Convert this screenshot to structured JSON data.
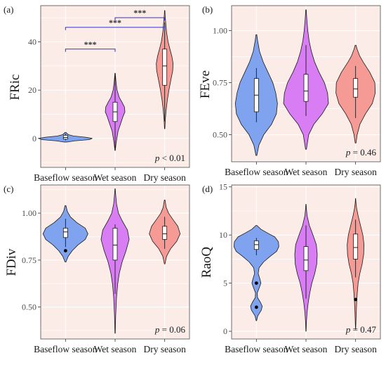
{
  "colors": {
    "baseflow": "#7fa3ee",
    "wet": "#d97df5",
    "dry": "#f69a95",
    "panel_bg": "#fbece7",
    "grid": "#ffffff",
    "bracket": "#3333cc"
  },
  "chart_data": [
    {
      "type": "violin",
      "panel": "(a)",
      "ylabel": "FRic",
      "categories": [
        "Baseflow season",
        "Wet season",
        "Dry season"
      ],
      "yticks": [
        0,
        20,
        40
      ],
      "ytick_labels": [
        "0",
        "20",
        "40"
      ],
      "ylim": [
        -12,
        55
      ],
      "p_italic": "p",
      "p_text": " < 0.01",
      "significance": [
        {
          "from": 0,
          "to": 1,
          "label": "***",
          "y": 37
        },
        {
          "from": 0,
          "to": 2,
          "label": "***",
          "y": 46
        },
        {
          "from": 1,
          "to": 2,
          "label": "***",
          "y": 50
        }
      ],
      "violins": [
        {
          "min": -1.5,
          "max": 2.5,
          "q1": -0.3,
          "median": 0.4,
          "q3": 1.3,
          "wlo": -0.8,
          "whi": 2.0,
          "outliers": [],
          "density": [
            [
              -1.5,
              0.05
            ],
            [
              -1,
              0.35
            ],
            [
              -0.5,
              0.9
            ],
            [
              0,
              1
            ],
            [
              0.5,
              0.75
            ],
            [
              1,
              0.3
            ],
            [
              1.5,
              0.12
            ],
            [
              2,
              0.06
            ],
            [
              2.5,
              0.02
            ]
          ]
        },
        {
          "min": -5,
          "max": 27,
          "q1": 7,
          "median": 11,
          "q3": 15,
          "wlo": -4,
          "whi": 26,
          "outliers": [],
          "density": [
            [
              -5,
              0.02
            ],
            [
              -2,
              0.1
            ],
            [
              0,
              0.18
            ],
            [
              3,
              0.3
            ],
            [
              6,
              0.55
            ],
            [
              9,
              0.8
            ],
            [
              11,
              1
            ],
            [
              13,
              0.95
            ],
            [
              15,
              0.7
            ],
            [
              17,
              0.42
            ],
            [
              20,
              0.2
            ],
            [
              23,
              0.1
            ],
            [
              25,
              0.06
            ],
            [
              27,
              0.02
            ]
          ]
        },
        {
          "min": 4,
          "max": 53,
          "q1": 22,
          "median": 30,
          "q3": 37,
          "wlo": 7,
          "whi": 48,
          "outliers": [],
          "density": [
            [
              4,
              0.02
            ],
            [
              8,
              0.08
            ],
            [
              12,
              0.18
            ],
            [
              16,
              0.32
            ],
            [
              20,
              0.5
            ],
            [
              24,
              0.72
            ],
            [
              28,
              0.95
            ],
            [
              31,
              1
            ],
            [
              34,
              0.85
            ],
            [
              37,
              0.62
            ],
            [
              40,
              0.4
            ],
            [
              44,
              0.22
            ],
            [
              48,
              0.12
            ],
            [
              51,
              0.05
            ],
            [
              53,
              0.02
            ]
          ]
        }
      ]
    },
    {
      "type": "violin",
      "panel": "(b)",
      "ylabel": "FEve",
      "categories": [
        "Baseflow season",
        "Wet season",
        "Dry season"
      ],
      "yticks": [
        0.5,
        0.75,
        1.0
      ],
      "ytick_labels": [
        "0.50",
        "0.75",
        "1.00"
      ],
      "ylim": [
        0.37,
        1.12
      ],
      "p_italic": "p",
      "p_text": " = 0.46",
      "significance": [],
      "violins": [
        {
          "min": 0.4,
          "max": 0.98,
          "q1": 0.61,
          "median": 0.69,
          "q3": 0.77,
          "wlo": 0.56,
          "whi": 0.82,
          "outliers": [],
          "density": [
            [
              0.4,
              0.02
            ],
            [
              0.45,
              0.12
            ],
            [
              0.5,
              0.35
            ],
            [
              0.55,
              0.72
            ],
            [
              0.6,
              0.95
            ],
            [
              0.65,
              1
            ],
            [
              0.7,
              0.92
            ],
            [
              0.75,
              0.78
            ],
            [
              0.8,
              0.55
            ],
            [
              0.85,
              0.32
            ],
            [
              0.9,
              0.15
            ],
            [
              0.95,
              0.06
            ],
            [
              0.98,
              0.02
            ]
          ]
        },
        {
          "min": 0.43,
          "max": 1.1,
          "q1": 0.66,
          "median": 0.71,
          "q3": 0.79,
          "wlo": 0.59,
          "whi": 0.93,
          "outliers": [],
          "density": [
            [
              0.43,
              0.02
            ],
            [
              0.5,
              0.12
            ],
            [
              0.55,
              0.35
            ],
            [
              0.6,
              0.72
            ],
            [
              0.65,
              1
            ],
            [
              0.7,
              0.96
            ],
            [
              0.75,
              0.82
            ],
            [
              0.8,
              0.58
            ],
            [
              0.85,
              0.38
            ],
            [
              0.9,
              0.24
            ],
            [
              0.95,
              0.14
            ],
            [
              1.0,
              0.08
            ],
            [
              1.05,
              0.04
            ],
            [
              1.1,
              0.01
            ]
          ]
        },
        {
          "min": 0.46,
          "max": 0.93,
          "q1": 0.68,
          "median": 0.72,
          "q3": 0.77,
          "wlo": 0.58,
          "whi": 0.83,
          "outliers": [],
          "density": [
            [
              0.46,
              0.02
            ],
            [
              0.5,
              0.08
            ],
            [
              0.55,
              0.22
            ],
            [
              0.6,
              0.5
            ],
            [
              0.65,
              0.85
            ],
            [
              0.7,
              1
            ],
            [
              0.75,
              0.98
            ],
            [
              0.8,
              0.72
            ],
            [
              0.85,
              0.38
            ],
            [
              0.88,
              0.2
            ],
            [
              0.91,
              0.08
            ],
            [
              0.93,
              0.02
            ]
          ]
        }
      ]
    },
    {
      "type": "violin",
      "panel": "(c)",
      "ylabel": "FDiv",
      "categories": [
        "Baseflow season",
        "Wet season",
        "Dry season"
      ],
      "yticks": [
        0.5,
        0.75,
        1.0
      ],
      "ytick_labels": [
        "0.50",
        "0.75",
        "1.00"
      ],
      "ylim": [
        0.33,
        1.15
      ],
      "p_italic": "p",
      "p_text": " = 0.06",
      "significance": [],
      "violins": [
        {
          "min": 0.74,
          "max": 1.04,
          "q1": 0.87,
          "median": 0.9,
          "q3": 0.92,
          "wlo": 0.82,
          "whi": 0.97,
          "outliers": [
            0.8
          ],
          "density": [
            [
              0.74,
              0.02
            ],
            [
              0.77,
              0.12
            ],
            [
              0.8,
              0.3
            ],
            [
              0.83,
              0.55
            ],
            [
              0.86,
              0.88
            ],
            [
              0.89,
              1
            ],
            [
              0.92,
              0.88
            ],
            [
              0.95,
              0.5
            ],
            [
              0.98,
              0.22
            ],
            [
              1.01,
              0.08
            ],
            [
              1.04,
              0.02
            ]
          ]
        },
        {
          "min": 0.36,
          "max": 1.13,
          "q1": 0.75,
          "median": 0.83,
          "q3": 0.92,
          "wlo": 0.57,
          "whi": 0.94,
          "outliers": [],
          "density": [
            [
              0.36,
              0.01
            ],
            [
              0.45,
              0.04
            ],
            [
              0.55,
              0.1
            ],
            [
              0.62,
              0.18
            ],
            [
              0.68,
              0.3
            ],
            [
              0.74,
              0.5
            ],
            [
              0.8,
              0.78
            ],
            [
              0.86,
              1
            ],
            [
              0.91,
              0.88
            ],
            [
              0.96,
              0.5
            ],
            [
              1.0,
              0.24
            ],
            [
              1.05,
              0.1
            ],
            [
              1.1,
              0.04
            ],
            [
              1.13,
              0.01
            ]
          ]
        },
        {
          "min": 0.73,
          "max": 1.07,
          "q1": 0.86,
          "median": 0.89,
          "q3": 0.93,
          "wlo": 0.81,
          "whi": 0.98,
          "outliers": [],
          "density": [
            [
              0.73,
              0.02
            ],
            [
              0.77,
              0.12
            ],
            [
              0.81,
              0.38
            ],
            [
              0.85,
              0.78
            ],
            [
              0.89,
              1
            ],
            [
              0.93,
              0.85
            ],
            [
              0.97,
              0.5
            ],
            [
              1.0,
              0.25
            ],
            [
              1.03,
              0.1
            ],
            [
              1.07,
              0.02
            ]
          ]
        }
      ]
    },
    {
      "type": "violin",
      "panel": "(d)",
      "ylabel": "RaoQ",
      "categories": [
        "Baseflow season",
        "Wet season",
        "Dry season"
      ],
      "yticks": [
        0,
        5,
        10,
        15
      ],
      "ytick_labels": [
        "0",
        "5",
        "10",
        "15"
      ],
      "ylim": [
        -0.8,
        15.2
      ],
      "p_italic": "p",
      "p_text": " = 0.47",
      "significance": [],
      "violins": [
        {
          "min": 1.1,
          "max": 11.0,
          "q1": 8.5,
          "median": 9.0,
          "q3": 9.4,
          "wlo": 7.9,
          "whi": 9.7,
          "outliers": [
            5.0,
            2.5
          ],
          "density": [
            [
              1.1,
              0.01
            ],
            [
              1.6,
              0.06
            ],
            [
              2.2,
              0.22
            ],
            [
              2.6,
              0.26
            ],
            [
              3.0,
              0.18
            ],
            [
              3.5,
              0.05
            ],
            [
              4.0,
              0.04
            ],
            [
              4.6,
              0.14
            ],
            [
              5.0,
              0.2
            ],
            [
              5.4,
              0.16
            ],
            [
              6.0,
              0.08
            ],
            [
              6.6,
              0.12
            ],
            [
              7.2,
              0.32
            ],
            [
              7.8,
              0.62
            ],
            [
              8.3,
              0.9
            ],
            [
              8.8,
              1
            ],
            [
              9.3,
              0.98
            ],
            [
              9.8,
              0.82
            ],
            [
              10.2,
              0.5
            ],
            [
              10.6,
              0.2
            ],
            [
              11.0,
              0.02
            ]
          ]
        },
        {
          "min": 0.0,
          "max": 13.2,
          "q1": 6.3,
          "median": 7.4,
          "q3": 8.8,
          "wlo": 3.4,
          "whi": 11.0,
          "outliers": [],
          "density": [
            [
              0,
              0.01
            ],
            [
              1,
              0.04
            ],
            [
              2,
              0.1
            ],
            [
              3,
              0.2
            ],
            [
              4,
              0.34
            ],
            [
              5,
              0.52
            ],
            [
              6,
              0.78
            ],
            [
              7,
              0.96
            ],
            [
              8,
              1
            ],
            [
              9,
              0.92
            ],
            [
              10,
              0.62
            ],
            [
              11,
              0.3
            ],
            [
              12,
              0.1
            ],
            [
              12.7,
              0.04
            ],
            [
              13.2,
              0.01
            ]
          ]
        },
        {
          "min": 0.2,
          "max": 13.8,
          "q1": 7.5,
          "median": 8.7,
          "q3": 10.1,
          "wlo": 5.6,
          "whi": 11.6,
          "outliers": [
            3.3
          ],
          "density": [
            [
              0.2,
              0.01
            ],
            [
              1,
              0.04
            ],
            [
              2,
              0.08
            ],
            [
              3,
              0.13
            ],
            [
              4,
              0.2
            ],
            [
              5,
              0.3
            ],
            [
              6,
              0.5
            ],
            [
              7,
              0.78
            ],
            [
              8,
              0.96
            ],
            [
              9,
              1
            ],
            [
              10,
              0.86
            ],
            [
              11,
              0.58
            ],
            [
              12,
              0.3
            ],
            [
              12.8,
              0.12
            ],
            [
              13.4,
              0.04
            ],
            [
              13.8,
              0.01
            ]
          ]
        }
      ]
    }
  ]
}
